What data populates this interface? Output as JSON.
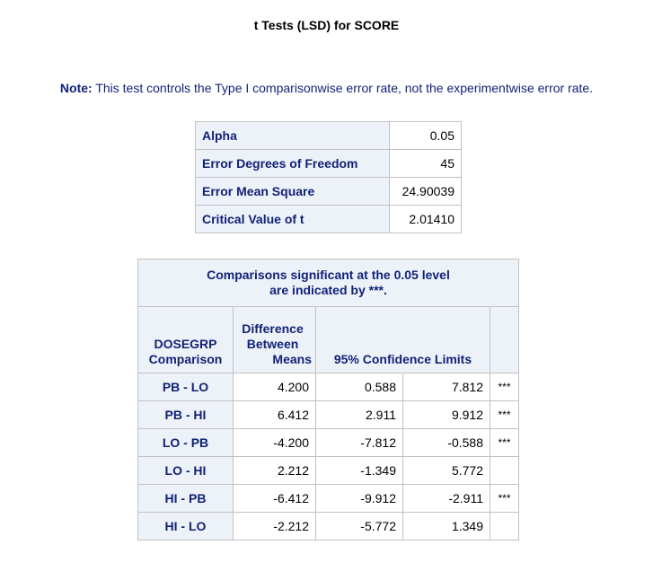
{
  "title": "t Tests (LSD) for SCORE",
  "note": {
    "label": "Note:",
    "text": "This test controls the Type I comparisonwise error rate, not the experimentwise error rate."
  },
  "parameters": [
    {
      "label": "Alpha",
      "value": "0.05"
    },
    {
      "label": "Error Degrees of Freedom",
      "value": "45"
    },
    {
      "label": "Error Mean Square",
      "value": "24.90039"
    },
    {
      "label": "Critical Value of t",
      "value": "2.01410"
    }
  ],
  "comparisons": {
    "banner_line1": "Comparisons significant at the 0.05 level",
    "banner_line2": "are indicated by ***.",
    "headers": {
      "comparison_line1": "DOSEGRP",
      "comparison_line2": "Comparison",
      "difference_line1": "Difference",
      "difference_line2": "Between",
      "difference_line3": "Means",
      "confidence": "95% Confidence Limits",
      "significance": ""
    },
    "rows": [
      {
        "comparison": "PB - LO",
        "difference": "4.200",
        "lower": "0.588",
        "upper": "7.812",
        "sig": "***"
      },
      {
        "comparison": "PB - HI",
        "difference": "6.412",
        "lower": "2.911",
        "upper": "9.912",
        "sig": "***"
      },
      {
        "comparison": "LO - PB",
        "difference": "-4.200",
        "lower": "-7.812",
        "upper": "-0.588",
        "sig": "***"
      },
      {
        "comparison": "LO - HI",
        "difference": "2.212",
        "lower": "-1.349",
        "upper": "5.772",
        "sig": ""
      },
      {
        "comparison": "HI - PB",
        "difference": "-6.412",
        "lower": "-9.912",
        "upper": "-2.911",
        "sig": "***"
      },
      {
        "comparison": "HI - LO",
        "difference": "-2.212",
        "lower": "-5.772",
        "upper": "1.349",
        "sig": ""
      }
    ]
  },
  "colors": {
    "header_bg": "#edf2f9",
    "header_text": "#112277",
    "border": "#c1c1c1"
  }
}
